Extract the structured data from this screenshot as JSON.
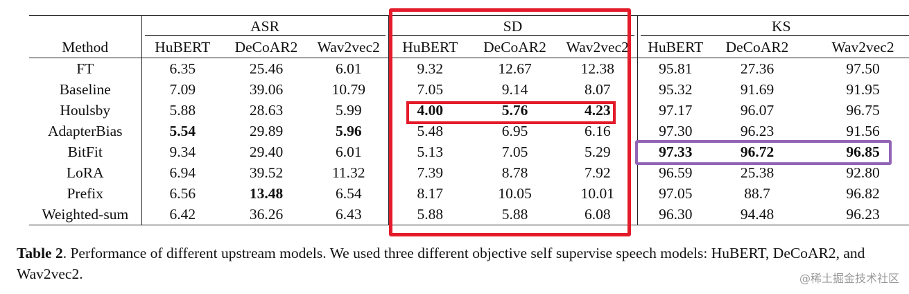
{
  "table": {
    "method_header": "Method",
    "groups": [
      {
        "label": "ASR",
        "models": [
          "HuBERT",
          "DeCoAR2",
          "Wav2vec2"
        ]
      },
      {
        "label": "SD",
        "models": [
          "HuBERT",
          "DeCoAR2",
          "Wav2vec2"
        ]
      },
      {
        "label": "KS",
        "models": [
          "HuBERT",
          "DeCoAR2",
          "Wav2vec2"
        ]
      }
    ],
    "rows": [
      {
        "method": "FT",
        "values": [
          "6.35",
          "25.46",
          "6.01",
          "9.32",
          "12.67",
          "12.38",
          "95.81",
          "27.36",
          "97.50"
        ]
      },
      {
        "method": "Baseline",
        "values": [
          "7.09",
          "39.06",
          "10.79",
          "7.05",
          "9.14",
          "8.07",
          "95.32",
          "91.69",
          "91.95"
        ]
      },
      {
        "method": "Houlsby",
        "values": [
          "5.88",
          "28.63",
          "5.99",
          "4.00",
          "5.76",
          "4.23",
          "97.17",
          "96.07",
          "96.75"
        ]
      },
      {
        "method": "AdapterBias",
        "values": [
          "5.54",
          "29.89",
          "5.96",
          "5.48",
          "6.95",
          "6.16",
          "97.30",
          "96.23",
          "91.56"
        ]
      },
      {
        "method": "BitFit",
        "values": [
          "9.34",
          "29.40",
          "6.01",
          "5.13",
          "7.05",
          "5.29",
          "97.33",
          "96.72",
          "96.85"
        ]
      },
      {
        "method": "LoRA",
        "values": [
          "6.94",
          "39.52",
          "11.32",
          "7.39",
          "8.78",
          "7.92",
          "96.59",
          "25.38",
          "92.80"
        ]
      },
      {
        "method": "Prefix",
        "values": [
          "6.56",
          "13.48",
          "6.54",
          "8.17",
          "10.05",
          "10.01",
          "97.05",
          "88.7",
          "96.82"
        ]
      },
      {
        "method": "Weighted-sum",
        "values": [
          "6.42",
          "36.26",
          "6.43",
          "5.88",
          "5.88",
          "6.08",
          "96.30",
          "94.48",
          "96.23"
        ]
      }
    ]
  },
  "caption": {
    "label": "Table 2",
    "text": ". Performance of different upstream models. We used three different objective self supervise speech models: HuBERT, DeCoAR2, and Wav2vec2."
  },
  "watermark": "@稀土掘金技术社区",
  "colors": {
    "sd_highlight": "#e31b2a",
    "bitfit_highlight": "#9264b6"
  }
}
